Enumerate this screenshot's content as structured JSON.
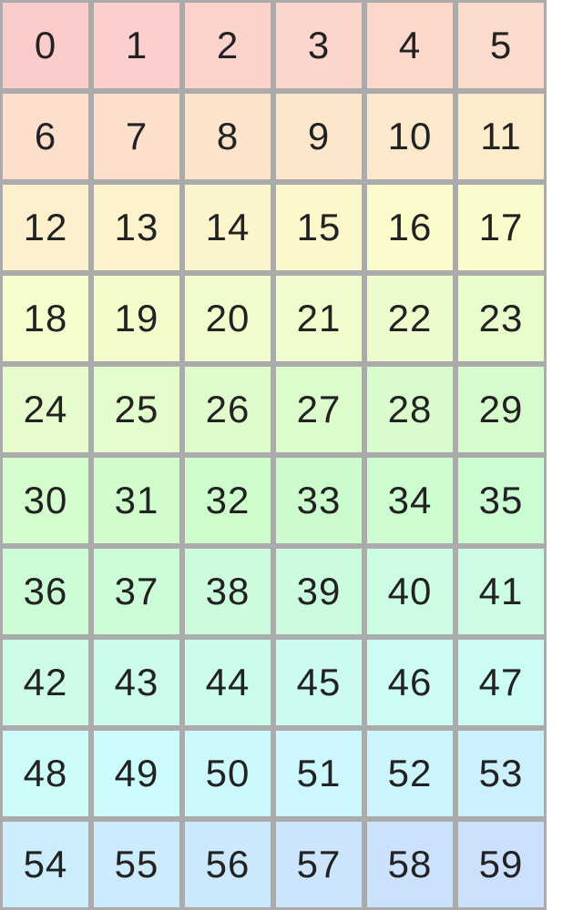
{
  "page": {
    "background": "#ffffff"
  },
  "grid": {
    "rows": 10,
    "columns": 6,
    "border_color": "#ababab",
    "cell_text_color": "#222222",
    "cells": [
      {
        "label": "0",
        "color": "#fccccc"
      },
      {
        "label": "1",
        "color": "#fccfcc"
      },
      {
        "label": "2",
        "color": "#fcd2cc"
      },
      {
        "label": "3",
        "color": "#fcd5cc"
      },
      {
        "label": "4",
        "color": "#fcd8cc"
      },
      {
        "label": "5",
        "color": "#fcdbcc"
      },
      {
        "label": "6",
        "color": "#fcdecc"
      },
      {
        "label": "7",
        "color": "#fce0cc"
      },
      {
        "label": "8",
        "color": "#fce3cc"
      },
      {
        "label": "9",
        "color": "#fce6cc"
      },
      {
        "label": "10",
        "color": "#fce9cc"
      },
      {
        "label": "11",
        "color": "#fceccc"
      },
      {
        "label": "12",
        "color": "#fcefcc"
      },
      {
        "label": "13",
        "color": "#fcf2cc"
      },
      {
        "label": "14",
        "color": "#fcf5cc"
      },
      {
        "label": "15",
        "color": "#fcf8cc"
      },
      {
        "label": "16",
        "color": "#fcfbcc"
      },
      {
        "label": "17",
        "color": "#fafccc"
      },
      {
        "label": "18",
        "color": "#f7fccc"
      },
      {
        "label": "19",
        "color": "#f4fccc"
      },
      {
        "label": "20",
        "color": "#f1fccc"
      },
      {
        "label": "21",
        "color": "#effccc"
      },
      {
        "label": "22",
        "color": "#ecfccc"
      },
      {
        "label": "23",
        "color": "#e9fccc"
      },
      {
        "label": "24",
        "color": "#e6fccc"
      },
      {
        "label": "25",
        "color": "#e3fccc"
      },
      {
        "label": "26",
        "color": "#e0fccc"
      },
      {
        "label": "27",
        "color": "#ddfccc"
      },
      {
        "label": "28",
        "color": "#dafccc"
      },
      {
        "label": "29",
        "color": "#d7fccc"
      },
      {
        "label": "30",
        "color": "#d4fccc"
      },
      {
        "label": "31",
        "color": "#d1fccc"
      },
      {
        "label": "32",
        "color": "#cefccc"
      },
      {
        "label": "33",
        "color": "#ccfccd"
      },
      {
        "label": "34",
        "color": "#ccfcd0"
      },
      {
        "label": "35",
        "color": "#ccfcd2"
      },
      {
        "label": "36",
        "color": "#ccfcd5"
      },
      {
        "label": "37",
        "color": "#ccfcd8"
      },
      {
        "label": "38",
        "color": "#ccfcdb"
      },
      {
        "label": "39",
        "color": "#ccfcde"
      },
      {
        "label": "40",
        "color": "#ccfce1"
      },
      {
        "label": "41",
        "color": "#ccfce4"
      },
      {
        "label": "42",
        "color": "#ccfce7"
      },
      {
        "label": "43",
        "color": "#ccfcea"
      },
      {
        "label": "44",
        "color": "#ccfced"
      },
      {
        "label": "45",
        "color": "#ccfcf0"
      },
      {
        "label": "46",
        "color": "#ccfcf3"
      },
      {
        "label": "47",
        "color": "#ccfcf6"
      },
      {
        "label": "48",
        "color": "#ccfcf9"
      },
      {
        "label": "49",
        "color": "#ccfcfb"
      },
      {
        "label": "50",
        "color": "#ccfafc"
      },
      {
        "label": "51",
        "color": "#ccf7fc"
      },
      {
        "label": "52",
        "color": "#ccf4fc"
      },
      {
        "label": "53",
        "color": "#ccf1fc"
      },
      {
        "label": "54",
        "color": "#cceefc"
      },
      {
        "label": "55",
        "color": "#ccebfc"
      },
      {
        "label": "56",
        "color": "#cce8fc"
      },
      {
        "label": "57",
        "color": "#cce5fc"
      },
      {
        "label": "58",
        "color": "#cce2fc"
      },
      {
        "label": "59",
        "color": "#ccdffc"
      }
    ]
  }
}
